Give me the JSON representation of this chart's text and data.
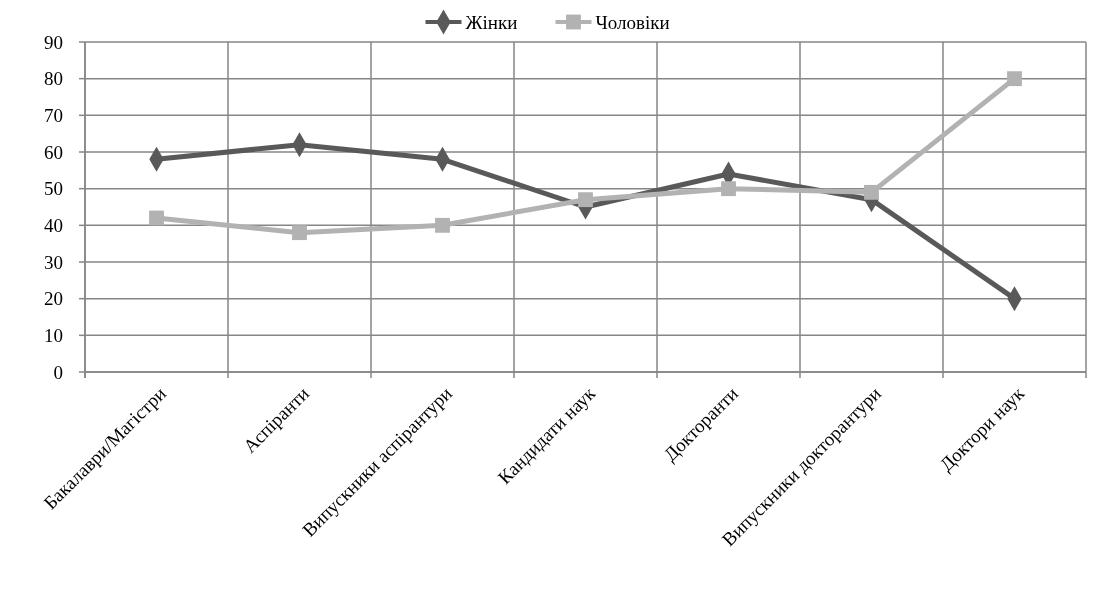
{
  "chart_data": {
    "type": "line",
    "categories": [
      "Бакалаври/Магістри",
      "Аспіранти",
      "Випускники аспірантури",
      "Кандидати наук",
      "Докторанти",
      "Випускники докторантури",
      "Доктори наук"
    ],
    "series": [
      {
        "name": "Жінки",
        "color": "#595959",
        "marker": "diamond",
        "values": [
          58,
          62,
          58,
          45,
          54,
          47,
          20
        ]
      },
      {
        "name": "Чоловіки",
        "color": "#b2b2b2",
        "marker": "square",
        "values": [
          42,
          38,
          40,
          47,
          50,
          49,
          80
        ]
      }
    ],
    "ylim": [
      0,
      90
    ],
    "yticks": [
      0,
      10,
      20,
      30,
      40,
      50,
      60,
      70,
      80,
      90
    ],
    "grid": true,
    "legend": "top",
    "line_style": "solid"
  }
}
